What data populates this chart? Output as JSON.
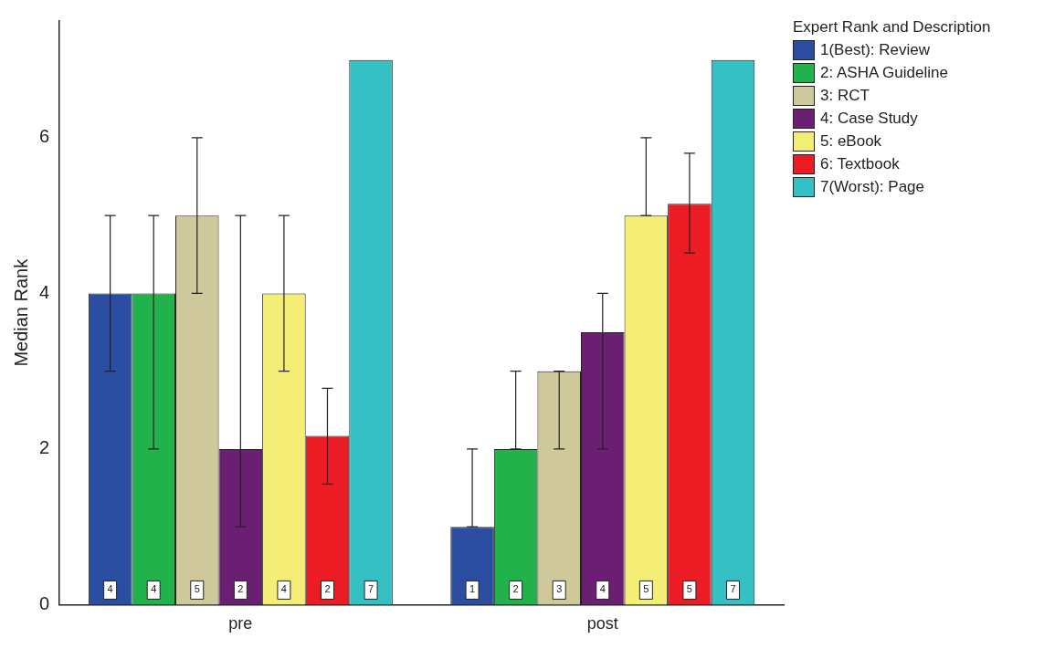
{
  "chart_data": {
    "type": "bar",
    "ylabel": "Median Rank",
    "legend_title": "Expert Rank and Description",
    "legend": "top right",
    "grid": false,
    "categories": [
      "pre",
      "post"
    ],
    "ylim": [
      0,
      7.5
    ],
    "yticks": [
      0,
      2,
      4,
      6
    ],
    "series": [
      {
        "name": "1(Best): Review",
        "color": "#2b4ea2",
        "values": [
          4,
          1
        ],
        "errors": [
          [
            3,
            5
          ],
          [
            1,
            2
          ]
        ],
        "value_labels": [
          "4",
          "1"
        ]
      },
      {
        "name": "2: ASHA Guideline",
        "color": "#21b24b",
        "values": [
          4,
          2
        ],
        "errors": [
          [
            2,
            5
          ],
          [
            2,
            3
          ]
        ],
        "value_labels": [
          "4",
          "2"
        ]
      },
      {
        "name": "3: RCT",
        "color": "#cfc89a",
        "values": [
          5,
          3
        ],
        "errors": [
          [
            4,
            6
          ],
          [
            2,
            3
          ]
        ],
        "value_labels": [
          "5",
          "3"
        ]
      },
      {
        "name": "4: Case Study",
        "color": "#6b1f72",
        "values": [
          2,
          3.5
        ],
        "errors": [
          [
            1,
            5
          ],
          [
            2,
            4
          ]
        ],
        "value_labels": [
          "2",
          "4"
        ]
      },
      {
        "name": "5: eBook",
        "color": "#f5ee76",
        "values": [
          4,
          5
        ],
        "errors": [
          [
            3,
            5
          ],
          [
            5,
            6
          ]
        ],
        "value_labels": [
          "4",
          "5"
        ]
      },
      {
        "name": "6: Textbook",
        "color": "#ec1c24",
        "values": [
          2.17,
          5.15
        ],
        "errors": [
          [
            1.55,
            2.78
          ],
          [
            4.52,
            5.8
          ]
        ],
        "value_labels": [
          "2",
          "5"
        ]
      },
      {
        "name": "7(Worst): Page",
        "color": "#35c0c4",
        "values": [
          7,
          7
        ],
        "errors": [
          null,
          null
        ],
        "value_labels": [
          "7",
          "7"
        ]
      }
    ]
  }
}
